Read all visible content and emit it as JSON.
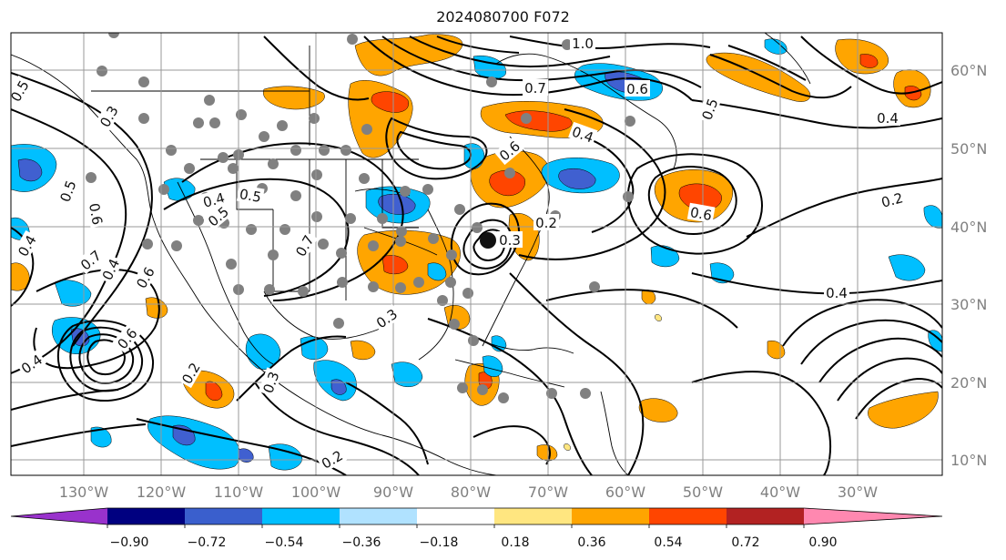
{
  "title": "2024080700 F072",
  "map": {
    "lon_labels": [
      "130°W",
      "120°W",
      "110°W",
      "100°W",
      "90°W",
      "80°W",
      "70°W",
      "60°W",
      "50°W",
      "40°W",
      "30°W"
    ],
    "lat_labels": [
      "60°N",
      "50°N",
      "40°N",
      "30°N",
      "20°N",
      "10°N"
    ],
    "grid": true,
    "fill_colors": {
      "orange": "#ffa500",
      "red_orange": "#ff4500",
      "dark_red": "#b22222",
      "sky_blue": "#00bfff",
      "royal_blue": "#4060d0",
      "light_yellow": "#ffe680"
    },
    "contour_labels": [
      "0.5",
      "0.4",
      "0.6",
      "0.7",
      "0.3",
      "0.2",
      "0.5",
      "0.4",
      "0.6",
      "0.3",
      "0.2",
      "0.4",
      "0.5",
      "0.6",
      "0.7",
      "0.5",
      "0.4",
      "0.6",
      "0.3",
      "0.2",
      "0.5",
      "0.6",
      "0.3",
      "0.4",
      "0.2",
      "1.0",
      "0.4",
      "0.4",
      "0.6",
      "0.7"
    ],
    "station_color": "#808080"
  },
  "colorbar": {
    "colors": [
      "#9932cc",
      "#000080",
      "#3a5fcd",
      "#00bfff",
      "#b0e2ff",
      "#ffffff",
      "#ffe680",
      "#ffa500",
      "#ff4500",
      "#b22222",
      "#ff88b0"
    ],
    "tick_labels": [
      "−0.90",
      "−0.72",
      "−0.54",
      "−0.36",
      "−0.18",
      "0.18",
      "0.36",
      "0.54",
      "0.72",
      "0.90"
    ]
  }
}
